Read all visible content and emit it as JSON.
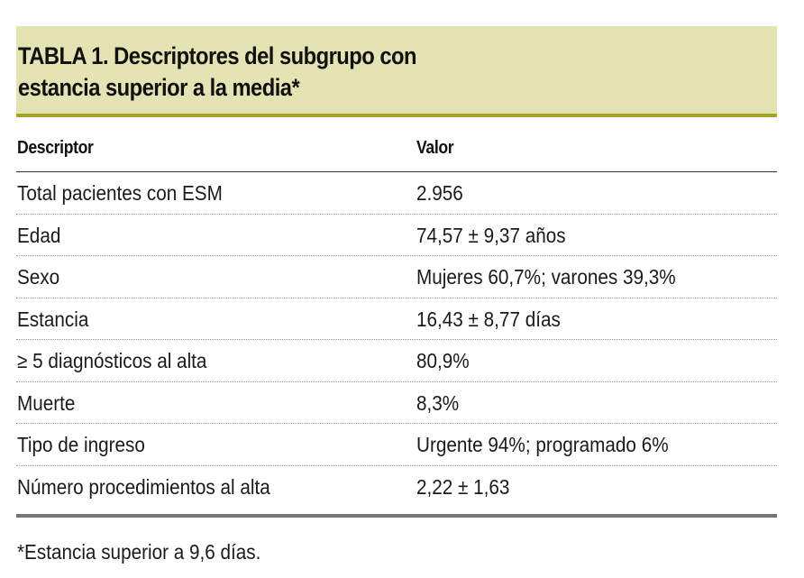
{
  "title": {
    "line1": "TABLA 1. Descriptores del subgrupo con",
    "line2": "estancia superior a la media*"
  },
  "table": {
    "headers": [
      "Descriptor",
      "Valor"
    ],
    "rows": [
      {
        "descriptor": "Total pacientes con ESM",
        "valor": "2.956"
      },
      {
        "descriptor": "Edad",
        "valor": "74,57 ± 9,37 años"
      },
      {
        "descriptor": "Sexo",
        "valor": "Mujeres 60,7%; varones 39,3%"
      },
      {
        "descriptor": "Estancia",
        "valor": "16,43 ± 8,77 días"
      },
      {
        "descriptor": "≥ 5 diagnósticos al alta",
        "valor": "80,9%"
      },
      {
        "descriptor": "Muerte",
        "valor": "8,3%"
      },
      {
        "descriptor": "Tipo de ingreso",
        "valor": "Urgente 94%; programado 6%"
      },
      {
        "descriptor": "Número procedimientos al alta",
        "valor": "2,22 ± 1,63"
      }
    ]
  },
  "footnote": "*Estancia superior a 9,6 días.",
  "colors": {
    "title_background": "#e3e3b3",
    "title_rule": "#a8a326",
    "bottom_rule": "#777777"
  }
}
